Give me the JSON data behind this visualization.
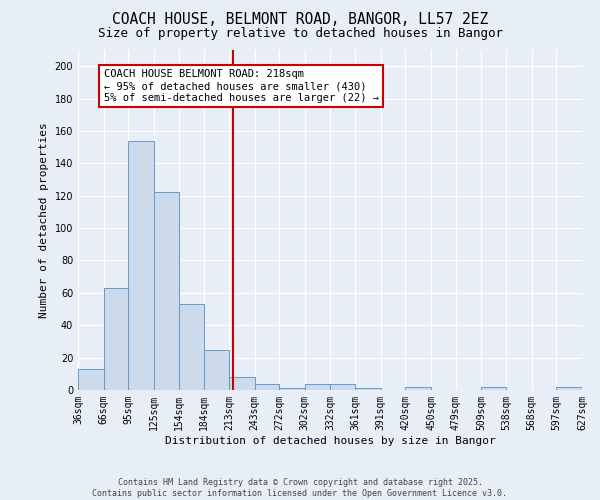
{
  "title1": "COACH HOUSE, BELMONT ROAD, BANGOR, LL57 2EZ",
  "title2": "Size of property relative to detached houses in Bangor",
  "xlabel": "Distribution of detached houses by size in Bangor",
  "ylabel": "Number of detached properties",
  "bar_edges": [
    36,
    66,
    95,
    125,
    154,
    184,
    213,
    243,
    272,
    302,
    332,
    361,
    391,
    420,
    450,
    479,
    509,
    538,
    568,
    597,
    627
  ],
  "bar_heights": [
    13,
    63,
    154,
    122,
    53,
    25,
    8,
    4,
    1,
    4,
    4,
    1,
    0,
    2,
    0,
    0,
    2,
    0,
    0,
    2
  ],
  "bar_color": "#ccdaeb",
  "bar_edge_color": "#6699cc",
  "vline_x": 218,
  "vline_color": "#cc0000",
  "ylim": [
    0,
    210
  ],
  "yticks": [
    0,
    20,
    40,
    60,
    80,
    100,
    120,
    140,
    160,
    180,
    200
  ],
  "legend_title": "COACH HOUSE BELMONT ROAD: 218sqm",
  "legend_line1": "← 95% of detached houses are smaller (430)",
  "legend_line2": "5% of semi-detached houses are larger (22) →",
  "footer1": "Contains HM Land Registry data © Crown copyright and database right 2025.",
  "footer2": "Contains public sector information licensed under the Open Government Licence v3.0.",
  "bg_color": "#e8eef8",
  "grid_color": "#ffffff",
  "title_fontsize": 10.5,
  "subtitle_fontsize": 9,
  "axis_label_fontsize": 8,
  "tick_fontsize": 7,
  "legend_fontsize": 7.5,
  "footer_fontsize": 6
}
